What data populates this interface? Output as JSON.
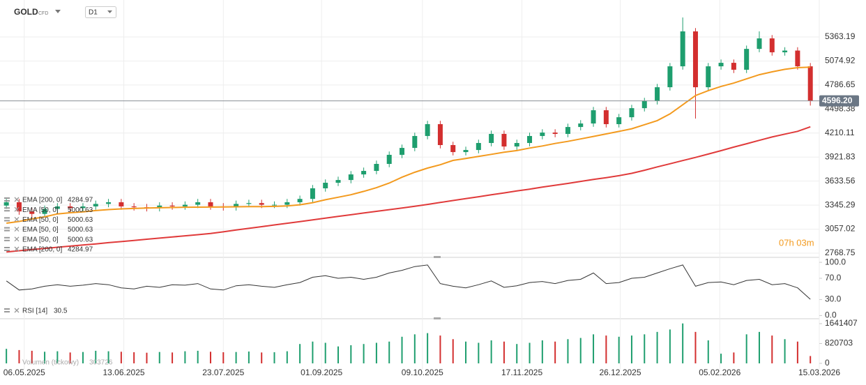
{
  "header": {
    "symbol": "GOLD",
    "instrument_type": "CFD",
    "interval": "D1"
  },
  "timer": "07h 03m",
  "chart_data": [
    {
      "type": "candlestick",
      "xlim": [
        -0.5,
        63.7
      ],
      "xticks": [
        {
          "value": 1.4,
          "label": "06.05.2025"
        },
        {
          "value": 9.2,
          "label": "13.06.2025"
        },
        {
          "value": 17.0,
          "label": "23.07.2025"
        },
        {
          "value": 24.7,
          "label": "01.09.2025"
        },
        {
          "value": 32.6,
          "label": "09.10.2025"
        },
        {
          "value": 40.4,
          "label": "17.11.2025"
        },
        {
          "value": 48.1,
          "label": "26.12.2025"
        },
        {
          "value": 55.9,
          "label": "05.02.2026"
        },
        {
          "value": 63.7,
          "label": "15.03.2026"
        }
      ],
      "ylim": [
        2727,
        5723
      ],
      "yticks": [
        5363.19,
        5074.92,
        4786.65,
        4498.38,
        4210.11,
        3921.83,
        3633.56,
        3345.29,
        3057.02,
        2768.75
      ],
      "grid": true,
      "up_color": "#1e9e6e",
      "down_color": "#d32f2f",
      "last_price": {
        "value": 4596.2,
        "label": "4596.20"
      },
      "open": [
        3340,
        3380,
        3270,
        3240,
        3300,
        3330,
        3310,
        3330,
        3360,
        3380,
        3330,
        3320,
        3310,
        3340,
        3330,
        3350,
        3380,
        3330,
        3320,
        3360,
        3370,
        3350,
        3350,
        3380,
        3420,
        3547,
        3614,
        3647,
        3714,
        3756,
        3840,
        3949,
        4032,
        4175,
        4317,
        4066,
        3982,
        4007,
        4091,
        4200,
        4049,
        4091,
        4175,
        4216,
        4200,
        4283,
        4325,
        4484,
        4317,
        4400,
        4509,
        4593,
        4760,
        5011,
        5430,
        4760,
        5011,
        5053,
        4970,
        5220,
        5346,
        5179,
        5200,
        5011
      ],
      "high": [
        3420,
        3420,
        3310,
        3340,
        3370,
        3370,
        3370,
        3400,
        3420,
        3420,
        3370,
        3360,
        3380,
        3380,
        3390,
        3420,
        3420,
        3370,
        3400,
        3410,
        3410,
        3390,
        3420,
        3460,
        3587,
        3654,
        3687,
        3754,
        3796,
        3880,
        3989,
        4072,
        4215,
        4357,
        4357,
        4106,
        4047,
        4131,
        4240,
        4240,
        4131,
        4215,
        4256,
        4256,
        4323,
        4365,
        4524,
        4524,
        4440,
        4549,
        4633,
        4800,
        5051,
        5597,
        5470,
        5051,
        5093,
        5093,
        5260,
        5430,
        5386,
        5240,
        5240,
        5051
      ],
      "low": [
        3300,
        3230,
        3200,
        3200,
        3260,
        3270,
        3270,
        3290,
        3320,
        3290,
        3280,
        3270,
        3270,
        3290,
        3290,
        3310,
        3290,
        3280,
        3280,
        3320,
        3310,
        3310,
        3310,
        3340,
        3380,
        3507,
        3574,
        3607,
        3674,
        3716,
        3800,
        3909,
        3992,
        4135,
        4026,
        3942,
        3942,
        3967,
        4051,
        4009,
        4009,
        4051,
        4135,
        4160,
        4160,
        4243,
        4285,
        4277,
        4277,
        4360,
        4469,
        4553,
        4720,
        4971,
        4384,
        4720,
        4971,
        4930,
        4930,
        5180,
        5139,
        5139,
        4971,
        4540
      ],
      "close": [
        3380,
        3270,
        3240,
        3300,
        3330,
        3310,
        3330,
        3360,
        3380,
        3330,
        3320,
        3310,
        3340,
        3330,
        3350,
        3380,
        3330,
        3320,
        3360,
        3370,
        3350,
        3350,
        3380,
        3420,
        3547,
        3614,
        3647,
        3714,
        3756,
        3840,
        3949,
        4032,
        4175,
        4317,
        4066,
        3982,
        4007,
        4091,
        4200,
        4049,
        4091,
        4175,
        4216,
        4200,
        4283,
        4325,
        4484,
        4317,
        4400,
        4509,
        4593,
        4760,
        5011,
        5430,
        4760,
        5011,
        5053,
        4970,
        5220,
        5346,
        5179,
        5200,
        5011,
        4596
      ],
      "series": [
        {
          "name": "EMA [50, 0]",
          "color": "#f39a1e",
          "values": [
            3129,
            3150,
            3180,
            3205,
            3240,
            3254,
            3265,
            3280,
            3292,
            3300,
            3305,
            3310,
            3314,
            3317,
            3320,
            3321,
            3322,
            3323,
            3325,
            3327,
            3328,
            3330,
            3335,
            3350,
            3375,
            3410,
            3440,
            3470,
            3510,
            3555,
            3610,
            3680,
            3740,
            3790,
            3830,
            3882,
            3905,
            3930,
            3955,
            3980,
            4000,
            4030,
            4055,
            4085,
            4110,
            4140,
            4170,
            4200,
            4230,
            4262,
            4310,
            4360,
            4440,
            4550,
            4660,
            4720,
            4770,
            4810,
            4860,
            4910,
            4945,
            4975,
            4995,
            5000.63
          ]
        },
        {
          "name": "EMA [200, 0]",
          "color": "#e03a3a",
          "values": [
            2784,
            2798,
            2812,
            2825,
            2840,
            2853,
            2867,
            2880,
            2895,
            2908,
            2922,
            2936,
            2950,
            2963,
            2977,
            2991,
            3005,
            3025,
            3047,
            3067,
            3087,
            3108,
            3128,
            3148,
            3168,
            3190,
            3210,
            3230,
            3251,
            3271,
            3291,
            3311,
            3332,
            3354,
            3377,
            3401,
            3423,
            3446,
            3470,
            3492,
            3515,
            3537,
            3561,
            3584,
            3606,
            3630,
            3653,
            3675,
            3699,
            3727,
            3764,
            3804,
            3842,
            3880,
            3918,
            3958,
            3999,
            4042,
            4082,
            4123,
            4163,
            4197,
            4231,
            4284.97
          ]
        }
      ]
    },
    {
      "type": "line",
      "name": "RSI [14]",
      "color": "#333333",
      "ylim": [
        -6,
        108
      ],
      "yticks": [
        {
          "value": 100,
          "label": "100.0"
        },
        {
          "value": 70,
          "label": "70.0"
        },
        {
          "value": 30,
          "label": "30.0"
        },
        {
          "value": 0,
          "label": "0.0"
        }
      ],
      "values": [
        65,
        48,
        50,
        55,
        58,
        55,
        57,
        60,
        58,
        52,
        50,
        55,
        53,
        58,
        57,
        60,
        50,
        48,
        56,
        58,
        55,
        53,
        58,
        62,
        72,
        75,
        70,
        72,
        68,
        72,
        80,
        85,
        92,
        95,
        60,
        55,
        52,
        58,
        65,
        53,
        56,
        62,
        64,
        60,
        66,
        68,
        80,
        60,
        62,
        70,
        72,
        80,
        88,
        95,
        55,
        62,
        63,
        58,
        66,
        68,
        58,
        60,
        52,
        30.5
      ]
    },
    {
      "type": "bar",
      "name": "Volumen (tickowy)",
      "ylim": [
        -260000,
        1815000
      ],
      "yticks": [
        1641407,
        820703,
        0
      ],
      "values": [
        600000,
        550000,
        520000,
        480000,
        500000,
        450000,
        470000,
        520000,
        500000,
        480000,
        460000,
        440000,
        470000,
        450000,
        500000,
        520000,
        480000,
        460000,
        470000,
        490000,
        450000,
        460000,
        500000,
        800000,
        900000,
        850000,
        700000,
        750000,
        800000,
        850000,
        900000,
        1100000,
        1200000,
        1250000,
        1150000,
        1000000,
        900000,
        850000,
        950000,
        900000,
        800000,
        850000,
        950000,
        900000,
        1000000,
        1050000,
        1200000,
        1150000,
        1100000,
        1150000,
        1200000,
        1300000,
        1400000,
        1650000,
        1300000,
        950000,
        400000,
        450000,
        1200000,
        1300000,
        1150000,
        1000000,
        900000,
        303726
      ]
    }
  ]
}
